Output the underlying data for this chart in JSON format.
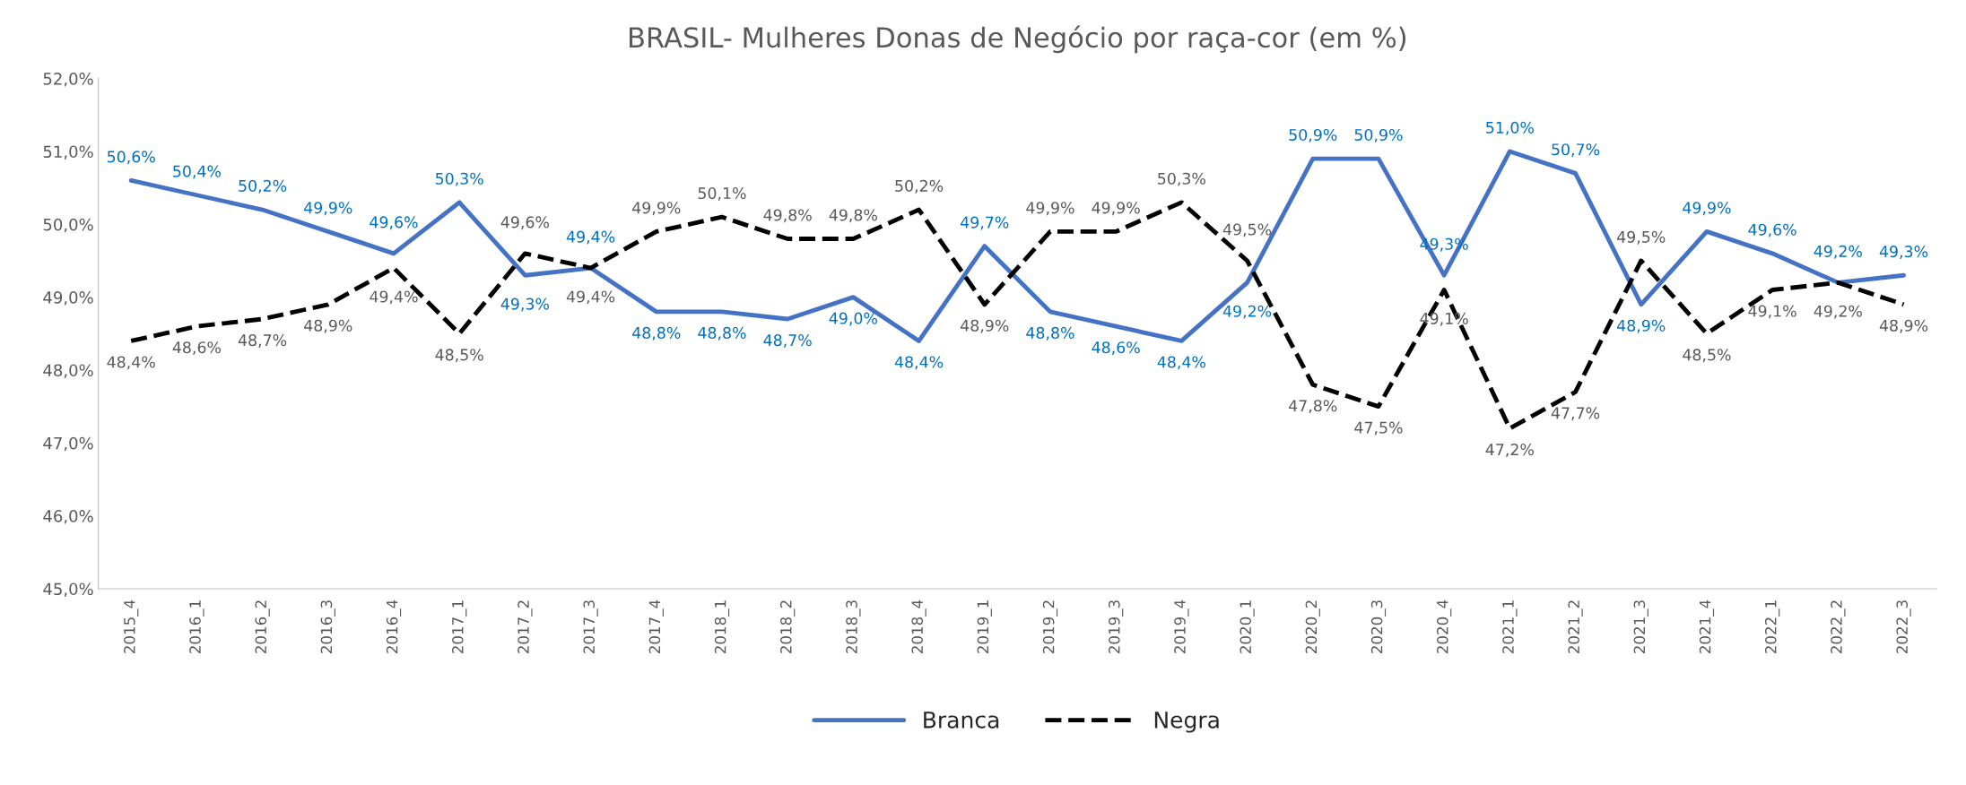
{
  "chart_data": {
    "type": "line",
    "title": "BRASIL- Mulheres Donas de Negócio por raça-cor (em %)",
    "categories": [
      "2015_4",
      "2016_1",
      "2016_2",
      "2016_3",
      "2016_4",
      "2017_1",
      "2017_2",
      "2017_3",
      "2017_4",
      "2018_1",
      "2018_2",
      "2018_3",
      "2018_4",
      "2019_1",
      "2019_2",
      "2019_3",
      "2019_4",
      "2020_1",
      "2020_2",
      "2020_3",
      "2020_4",
      "2021_1",
      "2021_2",
      "2021_3",
      "2021_4",
      "2022_1",
      "2022_2",
      "2022_3"
    ],
    "series": [
      {
        "name": "Branca",
        "color": "#4472c4",
        "line_style": "solid",
        "values": [
          50.6,
          50.4,
          50.2,
          49.9,
          49.6,
          50.3,
          49.3,
          49.4,
          48.8,
          48.8,
          48.7,
          49.0,
          48.4,
          49.7,
          48.8,
          48.6,
          48.4,
          49.2,
          50.9,
          50.9,
          49.3,
          51.0,
          50.7,
          48.9,
          49.9,
          49.6,
          49.2,
          49.3
        ],
        "value_labels": [
          "50,6%",
          "50,4%",
          "50,2%",
          "49,9%",
          "49,6%",
          "50,3%",
          "49,3%",
          "49,4%",
          "48,8%",
          "48,8%",
          "48,7%",
          "49,0%",
          "48,4%",
          "49,7%",
          "48,8%",
          "48,6%",
          "48,4%",
          "49,2%",
          "50,9%",
          "50,9%",
          "49,3%",
          "51,0%",
          "50,7%",
          "48,9%",
          "49,9%",
          "49,6%",
          "49,2%",
          "49,3%"
        ]
      },
      {
        "name": "Negra",
        "color": "#000000",
        "line_style": "dashed",
        "values": [
          48.4,
          48.6,
          48.7,
          48.9,
          49.4,
          48.5,
          49.6,
          49.4,
          49.9,
          50.1,
          49.8,
          49.8,
          50.2,
          48.9,
          49.9,
          49.9,
          50.3,
          49.5,
          47.8,
          47.5,
          49.1,
          47.2,
          47.7,
          49.5,
          48.5,
          49.1,
          49.2,
          48.9
        ],
        "value_labels": [
          "48,4%",
          "48,6%",
          "48,7%",
          "48,9%",
          "49,4%",
          "48,5%",
          "49,6%",
          "49,4%",
          "49,9%",
          "50,1%",
          "49,8%",
          "49,8%",
          "50,2%",
          "48,9%",
          "49,9%",
          "49,9%",
          "50,3%",
          "49,5%",
          "47,8%",
          "47,5%",
          "49,1%",
          "47,2%",
          "47,7%",
          "49,5%",
          "48,5%",
          "49,1%",
          "49,2%",
          "48,9%"
        ]
      }
    ],
    "ylim": [
      45,
      52
    ],
    "yticks": [
      {
        "value": 45,
        "label": "45,0%"
      },
      {
        "value": 46,
        "label": "46,0%"
      },
      {
        "value": 47,
        "label": "47,0%"
      },
      {
        "value": 48,
        "label": "48,0%"
      },
      {
        "value": 49,
        "label": "49,0%"
      },
      {
        "value": 50,
        "label": "50,0%"
      },
      {
        "value": 51,
        "label": "51,0%"
      },
      {
        "value": 52,
        "label": "52,0%"
      }
    ],
    "grid": false,
    "legend": "bottom",
    "marker": "none"
  }
}
